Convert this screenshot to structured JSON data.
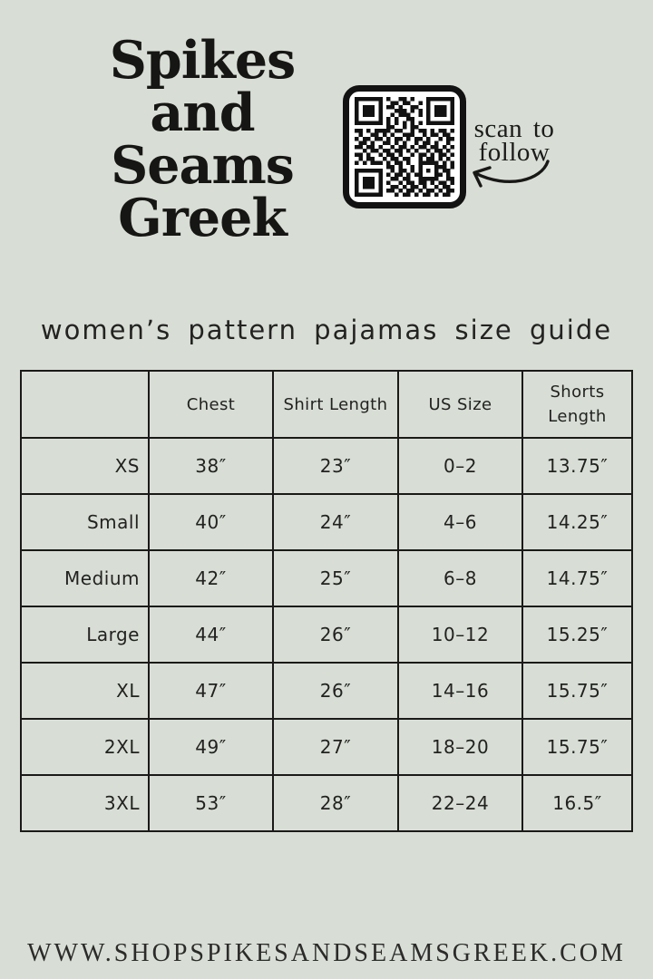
{
  "colors": {
    "background": "#d8ded6",
    "ink": "#1a1a18",
    "qr_background": "#ffffff"
  },
  "logo": {
    "lines": [
      "Spikes",
      "and",
      "Seams",
      "Greek"
    ]
  },
  "qr": {
    "caption": [
      "scan to",
      "follow"
    ],
    "matrix": [
      "1111111010011010001111111",
      "1000001001101100101000001",
      "1011101011010011001011101",
      "1011101000111010101011101",
      "1011101001011100101011101",
      "1000001010100110001000001",
      "1111111010101010101111111",
      "0000000011001011000000000",
      "1101011110110010110101101",
      "0100110101001110010110110",
      "1011011010110101101001011",
      "0110100110101001011010010",
      "1101101001011010110110101",
      "0010110110110101001011010",
      "1101001011010010110101101",
      "0101100101101100101101010",
      "1010111010110100111110101",
      "0000000011010010100011101",
      "1111111001011010101010110",
      "1000001010110101100011010",
      "1011101001101100111110011",
      "1011101010010110110101101",
      "1011101001101011010010110",
      "1000001011010110101101011",
      "1111111000101101011010110"
    ]
  },
  "title": "women’s pattern pajamas size guide",
  "size_table": {
    "columns": [
      "",
      "Chest",
      "Shirt Length",
      "US Size",
      "Shorts Length"
    ],
    "rows": [
      [
        "XS",
        "38″",
        "23″",
        "0–2",
        "13.75″"
      ],
      [
        "Small",
        "40″",
        "24″",
        "4–6",
        "14.25″"
      ],
      [
        "Medium",
        "42″",
        "25″",
        "6–8",
        "14.75″"
      ],
      [
        "Large",
        "44″",
        "26″",
        "10–12",
        "15.25″"
      ],
      [
        "XL",
        "47″",
        "26″",
        "14–16",
        "15.75″"
      ],
      [
        "2XL",
        "49″",
        "27″",
        "18–20",
        "15.75″"
      ],
      [
        "3XL",
        "53″",
        "28″",
        "22–24",
        "16.5″"
      ]
    ]
  },
  "footer": {
    "website": "WWW.SHOPSPIKESANDSEAMSGREEK.COM"
  }
}
